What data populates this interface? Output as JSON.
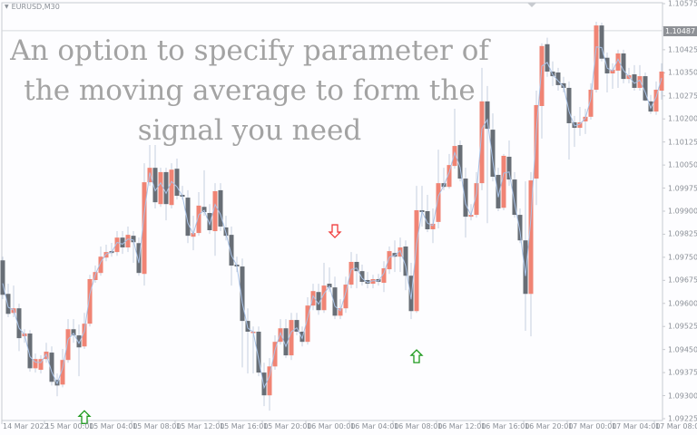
{
  "symbol_label": "EURUSD,M30",
  "overlay_text": [
    "An option to specify parameter of",
    "the moving average to form the",
    "signal you need"
  ],
  "current_price_label": "1.10487",
  "colors": {
    "bull": "#f08474",
    "bear": "#686e76",
    "ma_line": "#a9c2e6",
    "signal_up": "#1e9a1e",
    "signal_down": "#f03c3c",
    "overlay_text": "#a3a3a3"
  },
  "chart_data": {
    "type": "candlestick",
    "title": "EURUSD,M30",
    "ylim": [
      1.09225,
      1.10575
    ],
    "y_ticks": [
      "1.10575",
      "1.10500",
      "1.10425",
      "1.10350",
      "1.10275",
      "1.10200",
      "1.10125",
      "1.10050",
      "1.09975",
      "1.09900",
      "1.09825",
      "1.09750",
      "1.09675",
      "1.09600",
      "1.09525",
      "1.09450",
      "1.09375",
      "1.09300",
      "1.09225"
    ],
    "x_ticks": [
      "14 Mar 2022",
      "15 Mar 00:00",
      "15 Mar 04:00",
      "15 Mar 08:00",
      "15 Mar 12:00",
      "15 Mar 16:00",
      "15 Mar 20:00",
      "16 Mar 00:00",
      "16 Mar 04:00",
      "16 Mar 08:00",
      "16 Mar 12:00",
      "16 Mar 16:00",
      "16 Mar 20:00",
      "17 Mar 00:00",
      "17 Mar 04:00",
      "17 Mar 08:00"
    ],
    "current_price": 1.10487,
    "grid": false,
    "ohlc": [
      [
        1.0974,
        1.09752,
        1.09614,
        1.09628
      ],
      [
        1.09631,
        1.09664,
        1.09555,
        1.09566
      ],
      [
        1.09569,
        1.09658,
        1.09555,
        1.09584
      ],
      [
        1.09584,
        1.09599,
        1.09445,
        1.09487
      ],
      [
        1.09493,
        1.09516,
        1.09472,
        1.09502
      ],
      [
        1.09502,
        1.09513,
        1.09378,
        1.09389
      ],
      [
        1.09389,
        1.09437,
        1.09375,
        1.09419
      ],
      [
        1.09384,
        1.09431,
        1.09372,
        1.09419
      ],
      [
        1.09419,
        1.09472,
        1.09407,
        1.09443
      ],
      [
        1.0944,
        1.0946,
        1.09333,
        1.09345
      ],
      [
        1.09351,
        1.09372,
        1.09298,
        1.09333
      ],
      [
        1.09336,
        1.09452,
        1.09327,
        1.09416
      ],
      [
        1.09416,
        1.09549,
        1.09407,
        1.09516
      ],
      [
        1.09516,
        1.09549,
        1.09472,
        1.09496
      ],
      [
        1.09496,
        1.09531,
        1.09363,
        1.09457
      ],
      [
        1.0946,
        1.09569,
        1.09452,
        1.09534
      ],
      [
        1.09534,
        1.09693,
        1.09525,
        1.09679
      ],
      [
        1.09676,
        1.09723,
        1.09667,
        1.09702
      ],
      [
        1.09699,
        1.09785,
        1.0969,
        1.09752
      ],
      [
        1.09749,
        1.09791,
        1.09737,
        1.09767
      ],
      [
        1.0977,
        1.09797,
        1.09752,
        1.09764
      ],
      [
        1.09767,
        1.09835,
        1.09755,
        1.09814
      ],
      [
        1.09814,
        1.09835,
        1.09761,
        1.09782
      ],
      [
        1.09782,
        1.0985,
        1.09767,
        1.09823
      ],
      [
        1.0982,
        1.09835,
        1.09732,
        1.09799
      ],
      [
        1.09796,
        1.09814,
        1.0969,
        1.09699
      ],
      [
        1.09696,
        1.10056,
        1.09658,
        1.09994
      ],
      [
        1.09994,
        1.10115,
        1.09982,
        1.10041
      ],
      [
        1.10041,
        1.10115,
        1.09909,
        1.09929
      ],
      [
        1.09923,
        1.10041,
        1.09914,
        1.10027
      ],
      [
        1.10027,
        1.10041,
        1.0987,
        1.09923
      ],
      [
        1.0992,
        1.10056,
        1.09909,
        1.10035
      ],
      [
        1.10038,
        1.10071,
        1.09938,
        1.0995
      ],
      [
        1.09953,
        1.09982,
        1.09938,
        1.09947
      ],
      [
        1.09944,
        1.09968,
        1.09796,
        1.0982
      ],
      [
        1.09817,
        1.09885,
        1.09773,
        1.09829
      ],
      [
        1.09829,
        1.09962,
        1.0982,
        1.09918
      ],
      [
        1.09914,
        1.10033,
        1.09885,
        1.09897
      ],
      [
        1.09894,
        1.09923,
        1.09826,
        1.09838
      ],
      [
        1.09835,
        1.09991,
        1.09755,
        1.09965
      ],
      [
        1.09968,
        1.09991,
        1.09835,
        1.0985
      ],
      [
        1.09847,
        1.09885,
        1.09805,
        1.0982
      ],
      [
        1.09823,
        1.0985,
        1.09658,
        1.09723
      ],
      [
        1.09726,
        1.09752,
        1.09702,
        1.0972
      ],
      [
        1.0972,
        1.09746,
        1.09392,
        1.09543
      ],
      [
        1.09543,
        1.09584,
        1.09372,
        1.09508
      ],
      [
        1.09505,
        1.09525,
        1.09372,
        1.09508
      ],
      [
        1.09508,
        1.09525,
        1.09363,
        1.09375
      ],
      [
        1.09375,
        1.09407,
        1.09266,
        1.09301
      ],
      [
        1.09301,
        1.09422,
        1.09251,
        1.09395
      ],
      [
        1.09395,
        1.09496,
        1.09384,
        1.09475
      ],
      [
        1.09475,
        1.09549,
        1.09466,
        1.09519
      ],
      [
        1.09519,
        1.09549,
        1.09422,
        1.09431
      ],
      [
        1.09431,
        1.09569,
        1.09416,
        1.09546
      ],
      [
        1.09546,
        1.09569,
        1.09496,
        1.09508
      ],
      [
        1.09508,
        1.09525,
        1.0946,
        1.09475
      ],
      [
        1.09475,
        1.0962,
        1.09466,
        1.09593
      ],
      [
        1.09593,
        1.09664,
        1.09578,
        1.0964
      ],
      [
        1.09637,
        1.09664,
        1.09563,
        1.09578
      ],
      [
        1.09578,
        1.09732,
        1.09569,
        1.09658
      ],
      [
        1.09664,
        1.09717,
        1.09637,
        1.09652
      ],
      [
        1.09652,
        1.09687,
        1.09549,
        1.0956
      ],
      [
        1.0956,
        1.09614,
        1.09549,
        1.09584
      ],
      [
        1.09584,
        1.09687,
        1.09569,
        1.09661
      ],
      [
        1.09661,
        1.09767,
        1.09649,
        1.09735
      ],
      [
        1.09735,
        1.09761,
        1.09649,
        1.09705
      ],
      [
        1.09705,
        1.09726,
        1.09658,
        1.0967
      ],
      [
        1.09676,
        1.09702,
        1.09649,
        1.09664
      ],
      [
        1.09664,
        1.09693,
        1.09649,
        1.09679
      ],
      [
        1.09679,
        1.09696,
        1.09658,
        1.0967
      ],
      [
        1.09667,
        1.09737,
        1.09637,
        1.09714
      ],
      [
        1.09711,
        1.09785,
        1.09696,
        1.0977
      ],
      [
        1.09764,
        1.09805,
        1.09702,
        1.09752
      ],
      [
        1.09752,
        1.09814,
        1.09702,
        1.09782
      ],
      [
        1.09785,
        1.09805,
        1.09643,
        1.0969
      ],
      [
        1.0969,
        1.09732,
        1.09549,
        1.09575
      ],
      [
        1.09575,
        1.09982,
        1.09569,
        1.09903
      ],
      [
        1.09903,
        1.09982,
        1.0985,
        1.09897
      ],
      [
        1.099,
        1.09953,
        1.09832,
        1.09841
      ],
      [
        1.09841,
        1.09909,
        1.09796,
        1.09859
      ],
      [
        1.09865,
        1.101,
        1.09844,
        1.09991
      ],
      [
        1.09991,
        1.10041,
        1.09968,
        1.09979
      ],
      [
        1.09979,
        1.10086,
        1.09973,
        1.1005
      ],
      [
        1.10047,
        1.10233,
        1.10038,
        1.10112
      ],
      [
        1.10115,
        1.1013,
        1.09997,
        1.10006
      ],
      [
        1.10006,
        1.10041,
        1.09814,
        1.09882
      ],
      [
        1.09882,
        1.09923,
        1.0987,
        1.09888
      ],
      [
        1.09888,
        1.10027,
        1.09879,
        1.09991
      ],
      [
        1.09991,
        1.10366,
        1.09968,
        1.10257
      ],
      [
        1.10257,
        1.10307,
        1.09861,
        1.10168
      ],
      [
        1.10165,
        1.10218,
        1.09997,
        1.10012
      ],
      [
        1.10018,
        1.10041,
        1.099,
        1.09909
      ],
      [
        1.09911,
        1.10086,
        1.09903,
        1.1008
      ],
      [
        1.10077,
        1.1013,
        1.09982,
        1.10003
      ],
      [
        1.10003,
        1.10027,
        1.09879,
        1.09888
      ],
      [
        1.09888,
        1.09909,
        1.09796,
        1.09805
      ],
      [
        1.09805,
        1.09997,
        1.09511,
        1.09631
      ],
      [
        1.09631,
        1.10027,
        1.09493,
        1.1
      ],
      [
        1.10006,
        1.10292,
        1.0992,
        1.10245
      ],
      [
        1.10242,
        1.10446,
        1.10136,
        1.10437
      ],
      [
        1.10443,
        1.10464,
        1.10337,
        1.10354
      ],
      [
        1.10354,
        1.10387,
        1.10307,
        1.10339
      ],
      [
        1.10351,
        1.10366,
        1.10292,
        1.1031
      ],
      [
        1.10316,
        1.10337,
        1.10286,
        1.10301
      ],
      [
        1.10301,
        1.10322,
        1.10068,
        1.10186
      ],
      [
        1.10189,
        1.1021,
        1.10109,
        1.10171
      ],
      [
        1.10171,
        1.10239,
        1.10145,
        1.10189
      ],
      [
        1.10192,
        1.10233,
        1.10151,
        1.10207
      ],
      [
        1.10207,
        1.10316,
        1.10198,
        1.10295
      ],
      [
        1.10295,
        1.10516,
        1.10286,
        1.10504
      ],
      [
        1.10504,
        1.10513,
        1.10387,
        1.10396
      ],
      [
        1.10399,
        1.10416,
        1.10286,
        1.10348
      ],
      [
        1.10348,
        1.10381,
        1.10298,
        1.1036
      ],
      [
        1.10357,
        1.10425,
        1.10301,
        1.10413
      ],
      [
        1.10413,
        1.10425,
        1.10316,
        1.1033
      ],
      [
        1.1033,
        1.10366,
        1.10316,
        1.10342
      ],
      [
        1.10345,
        1.10375,
        1.10292,
        1.10301
      ],
      [
        1.10301,
        1.10375,
        1.10292,
        1.10339
      ],
      [
        1.10339,
        1.10351,
        1.10257,
        1.1026
      ],
      [
        1.10257,
        1.10278,
        1.10216,
        1.10224
      ],
      [
        1.10224,
        1.10322,
        1.10213,
        1.10295
      ],
      [
        1.10292,
        1.10381,
        1.10263,
        1.10354
      ]
    ],
    "signals": [
      {
        "candle": 15,
        "type": "buy",
        "price": 1.0923
      },
      {
        "candle": 61,
        "type": "sell",
        "price": 1.09835
      },
      {
        "candle": 76,
        "type": "buy",
        "price": 1.09428
      }
    ]
  }
}
